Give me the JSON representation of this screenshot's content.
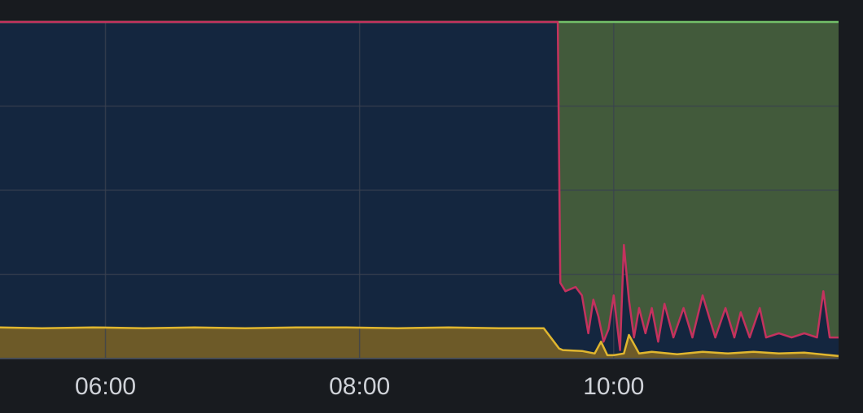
{
  "chart_data": {
    "type": "area",
    "stacked": true,
    "x_unit": "hours",
    "xlim": [
      5.17,
      11.77
    ],
    "ylim": [
      0,
      4
    ],
    "grid": true,
    "legend": "none",
    "x_ticks": [
      {
        "value": 6,
        "label": "06:00"
      },
      {
        "value": 8,
        "label": "08:00"
      },
      {
        "value": 10,
        "label": "10:00"
      }
    ],
    "y_gridlines": [
      1,
      2,
      3,
      4
    ],
    "colors": {
      "background": "#181b1f",
      "grid": "#3a4150",
      "green_fill": "#425a3b",
      "green_line": "#73bf69",
      "blue_fill": "#14263f",
      "red_line": "#c4325e",
      "yellow_fill": "#6d5a28",
      "yellow_line": "#e0b62f",
      "tick_text": "#cfd2d8"
    },
    "series": [
      {
        "color_key": "yellow",
        "x": [
          5.17,
          5.5,
          5.9,
          6.3,
          6.7,
          7.1,
          7.5,
          7.9,
          8.3,
          8.7,
          9.1,
          9.45,
          9.57,
          9.6,
          9.75,
          9.85,
          9.9,
          9.95,
          10.0,
          10.08,
          10.12,
          10.2,
          10.3,
          10.5,
          10.7,
          10.9,
          11.1,
          11.3,
          11.5,
          11.77
        ],
        "values": [
          0.37,
          0.36,
          0.37,
          0.36,
          0.37,
          0.36,
          0.37,
          0.37,
          0.36,
          0.37,
          0.36,
          0.36,
          0.12,
          0.1,
          0.09,
          0.06,
          0.2,
          0.04,
          0.04,
          0.06,
          0.28,
          0.06,
          0.08,
          0.05,
          0.08,
          0.06,
          0.08,
          0.06,
          0.07,
          0.03
        ]
      },
      {
        "color_key": "red",
        "x": [
          5.17,
          6.0,
          7.0,
          8.0,
          9.0,
          9.56,
          9.58,
          9.62,
          9.7,
          9.75,
          9.8,
          9.84,
          9.88,
          9.92,
          9.96,
          10.0,
          10.05,
          10.08,
          10.12,
          10.16,
          10.2,
          10.25,
          10.3,
          10.35,
          10.4,
          10.47,
          10.55,
          10.62,
          10.7,
          10.8,
          10.88,
          10.95,
          11.0,
          11.07,
          11.15,
          11.2,
          11.3,
          11.4,
          11.5,
          11.6,
          11.65,
          11.7,
          11.77
        ],
        "values": [
          4.0,
          4.0,
          4.0,
          4.0,
          4.0,
          4.0,
          0.9,
          0.8,
          0.85,
          0.75,
          0.3,
          0.7,
          0.5,
          0.2,
          0.35,
          0.75,
          0.1,
          1.35,
          0.7,
          0.25,
          0.6,
          0.3,
          0.6,
          0.2,
          0.65,
          0.25,
          0.6,
          0.25,
          0.75,
          0.25,
          0.6,
          0.25,
          0.55,
          0.25,
          0.6,
          0.25,
          0.3,
          0.25,
          0.3,
          0.25,
          0.8,
          0.25,
          0.25
        ]
      },
      {
        "color_key": "green",
        "x": [
          5.17,
          11.77
        ],
        "values": [
          4.0,
          4.0
        ]
      }
    ]
  }
}
